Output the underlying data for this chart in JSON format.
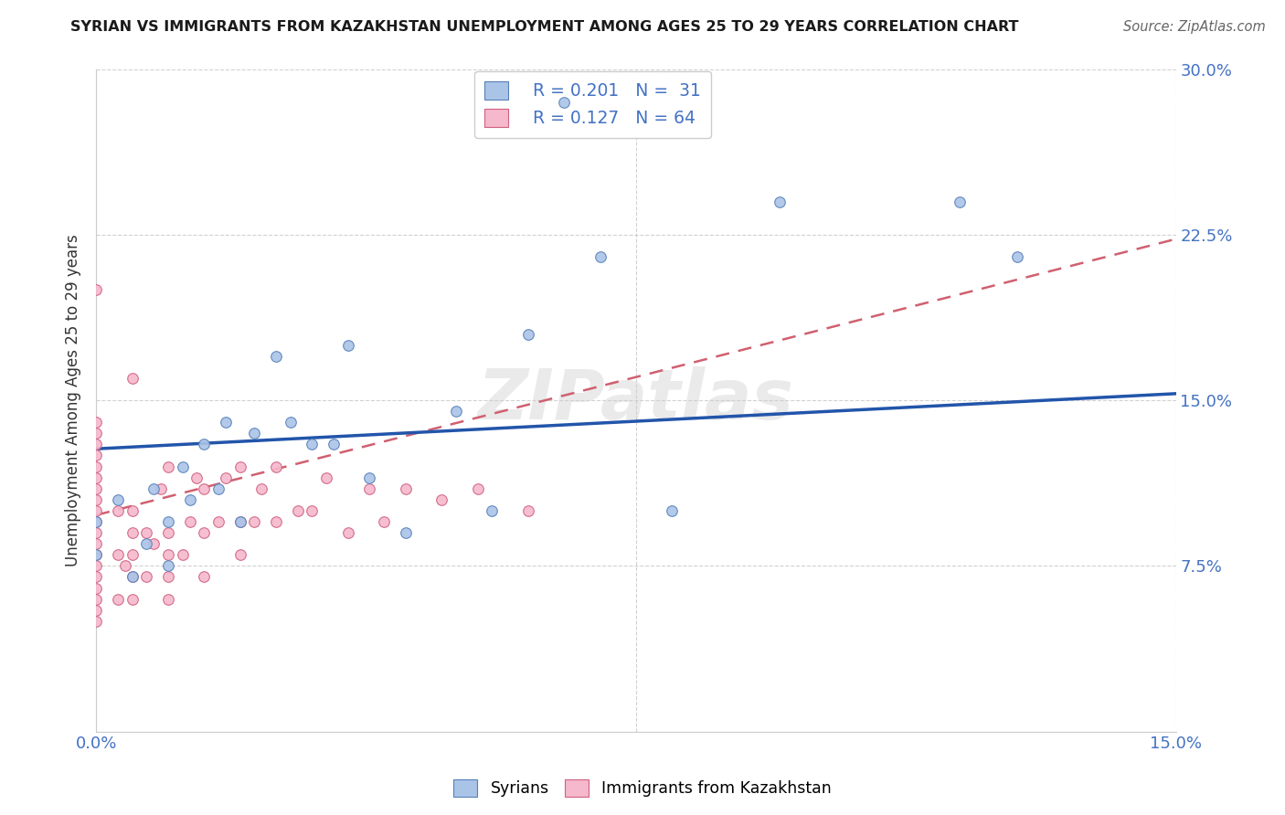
{
  "title": "SYRIAN VS IMMIGRANTS FROM KAZAKHSTAN UNEMPLOYMENT AMONG AGES 25 TO 29 YEARS CORRELATION CHART",
  "source": "Source: ZipAtlas.com",
  "ylabel": "Unemployment Among Ages 25 to 29 years",
  "xlim": [
    0.0,
    0.15
  ],
  "ylim": [
    0.0,
    0.3
  ],
  "syrians_color": "#aac4e8",
  "syrians_edge": "#5580b8",
  "kazakh_color": "#f5b8cc",
  "kazakh_edge": "#d06080",
  "trend_syrians_color": "#2255aa",
  "trend_kazakh_color": "#d06070",
  "background_color": "#ffffff",
  "watermark": "ZIPatlas",
  "syr_trend_x0": 0.0,
  "syr_trend_y0": 0.128,
  "syr_trend_x1": 0.15,
  "syr_trend_y1": 0.153,
  "kaz_trend_x0": 0.0,
  "kaz_trend_y0": 0.098,
  "kaz_trend_x1": 0.15,
  "kaz_trend_y1": 0.223,
  "syrians_x": [
    0.0,
    0.0,
    0.003,
    0.005,
    0.007,
    0.008,
    0.01,
    0.01,
    0.012,
    0.013,
    0.015,
    0.017,
    0.018,
    0.02,
    0.022,
    0.025,
    0.027,
    0.03,
    0.033,
    0.035,
    0.038,
    0.043,
    0.05,
    0.055,
    0.06,
    0.065,
    0.07,
    0.08,
    0.095,
    0.12,
    0.128
  ],
  "syrians_y": [
    0.08,
    0.095,
    0.105,
    0.07,
    0.085,
    0.11,
    0.075,
    0.095,
    0.12,
    0.105,
    0.13,
    0.11,
    0.14,
    0.095,
    0.135,
    0.17,
    0.14,
    0.13,
    0.13,
    0.175,
    0.115,
    0.09,
    0.145,
    0.1,
    0.18,
    0.285,
    0.215,
    0.1,
    0.24,
    0.24,
    0.215
  ],
  "kazakh_x": [
    0.0,
    0.0,
    0.0,
    0.0,
    0.0,
    0.0,
    0.0,
    0.0,
    0.0,
    0.0,
    0.0,
    0.0,
    0.0,
    0.0,
    0.0,
    0.0,
    0.0,
    0.0,
    0.0,
    0.0,
    0.003,
    0.003,
    0.003,
    0.004,
    0.005,
    0.005,
    0.005,
    0.005,
    0.005,
    0.005,
    0.007,
    0.007,
    0.008,
    0.009,
    0.01,
    0.01,
    0.01,
    0.01,
    0.01,
    0.012,
    0.013,
    0.014,
    0.015,
    0.015,
    0.015,
    0.017,
    0.018,
    0.02,
    0.02,
    0.02,
    0.022,
    0.023,
    0.025,
    0.025,
    0.028,
    0.03,
    0.032,
    0.035,
    0.038,
    0.04,
    0.043,
    0.048,
    0.053,
    0.06
  ],
  "kazakh_y": [
    0.05,
    0.055,
    0.06,
    0.065,
    0.07,
    0.075,
    0.08,
    0.085,
    0.09,
    0.095,
    0.1,
    0.105,
    0.11,
    0.115,
    0.12,
    0.125,
    0.13,
    0.135,
    0.14,
    0.2,
    0.06,
    0.08,
    0.1,
    0.075,
    0.06,
    0.07,
    0.08,
    0.09,
    0.1,
    0.16,
    0.07,
    0.09,
    0.085,
    0.11,
    0.06,
    0.07,
    0.08,
    0.09,
    0.12,
    0.08,
    0.095,
    0.115,
    0.07,
    0.09,
    0.11,
    0.095,
    0.115,
    0.08,
    0.095,
    0.12,
    0.095,
    0.11,
    0.095,
    0.12,
    0.1,
    0.1,
    0.115,
    0.09,
    0.11,
    0.095,
    0.11,
    0.105,
    0.11,
    0.1
  ]
}
